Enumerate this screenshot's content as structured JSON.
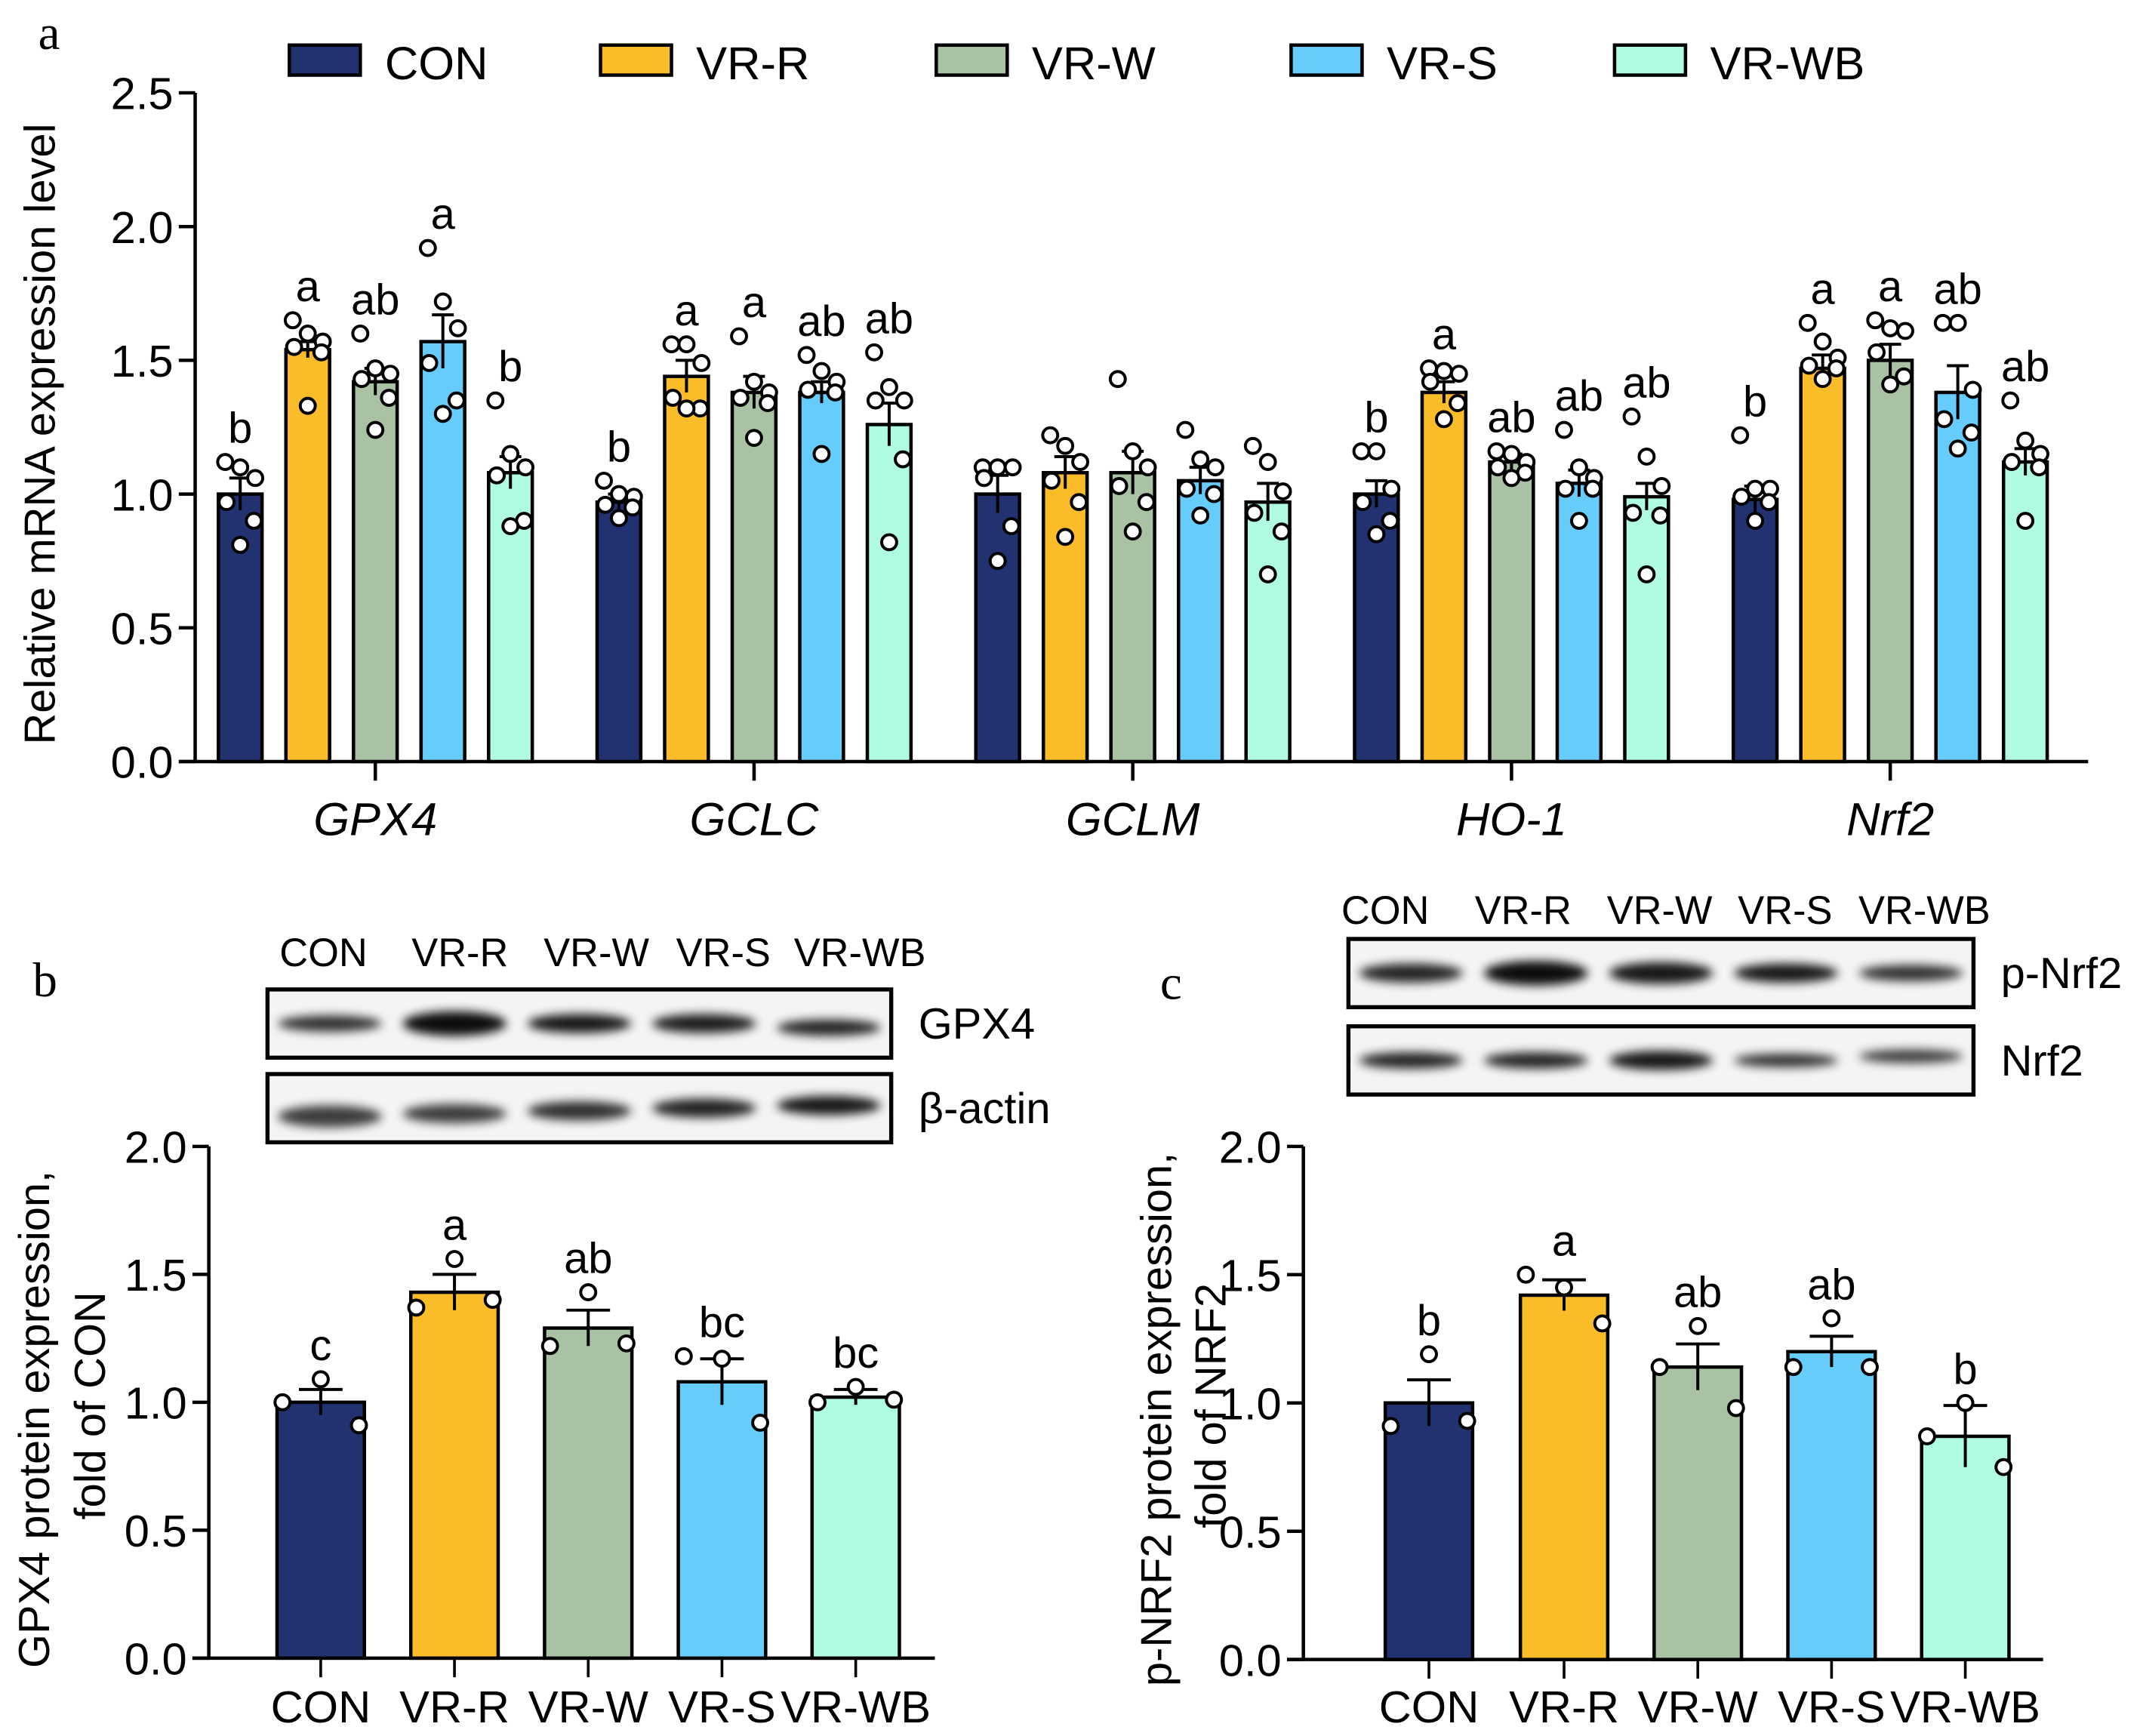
{
  "groups": [
    "CON",
    "VR-R",
    "VR-W",
    "VR-S",
    "VR-WB"
  ],
  "colors": {
    "CON": "#22316f",
    "VR-R": "#fbbc2a",
    "VR-W": "#a8c2a3",
    "VR-S": "#66ccfb",
    "VR-WB": "#b0fbe4"
  },
  "panel_labels": {
    "a": "a",
    "b": "b",
    "c": "c"
  },
  "blots_b": {
    "lanes": [
      "CON",
      "VR-R",
      "VR-W",
      "VR-S",
      "VR-WB"
    ],
    "rows": [
      "GPX4",
      "β-actin"
    ]
  },
  "blots_c": {
    "lanes": [
      "CON",
      "VR-R",
      "VR-W",
      "VR-S",
      "VR-WB"
    ],
    "rows": [
      "p-Nrf2",
      "Nrf2"
    ]
  },
  "chart_data": [
    {
      "type": "bar",
      "panel": "a",
      "title": "",
      "xlabel": "",
      "ylabel": "Relative mRNA expression level",
      "ylim": [
        0,
        2.5
      ],
      "yticks": [
        "0.0",
        "0.5",
        "1.0",
        "1.5",
        "2.0",
        "2.5"
      ],
      "legend": "top",
      "categories": [
        "GPX4",
        "GCLC",
        "GCLM",
        "HO-1",
        "Nrf2"
      ],
      "series": [
        {
          "name": "CON",
          "values": [
            1.0,
            0.97,
            1.0,
            1.0,
            0.98
          ],
          "errors": [
            0.06,
            0.03,
            0.07,
            0.05,
            0.05
          ],
          "letters": [
            "b",
            "b",
            "",
            "b",
            "b"
          ],
          "points": [
            [
              1.12,
              1.1,
              1.06,
              0.97,
              0.9,
              0.81
            ],
            [
              1.05,
              1.0,
              0.99,
              0.96,
              0.95,
              0.91
            ],
            [
              1.1,
              1.1,
              1.1,
              1.06,
              0.88,
              0.75
            ],
            [
              1.16,
              1.16,
              1.02,
              0.97,
              0.9,
              0.85
            ],
            [
              1.22,
              1.02,
              1.02,
              0.99,
              0.97,
              0.9
            ]
          ]
        },
        {
          "name": "VR-R",
          "values": [
            1.54,
            1.44,
            1.08,
            1.38,
            1.47
          ],
          "errors": [
            0.03,
            0.06,
            0.06,
            0.04,
            0.05
          ],
          "letters": [
            "a",
            "a",
            "",
            "a",
            "a"
          ],
          "points": [
            [
              1.65,
              1.6,
              1.57,
              1.55,
              1.53,
              1.33
            ],
            [
              1.56,
              1.56,
              1.49,
              1.36,
              1.32,
              1.32
            ],
            [
              1.22,
              1.18,
              1.12,
              1.05,
              0.97,
              0.84
            ],
            [
              1.47,
              1.46,
              1.45,
              1.42,
              1.34,
              1.28
            ],
            [
              1.64,
              1.57,
              1.51,
              1.48,
              1.47,
              1.43
            ]
          ]
        },
        {
          "name": "VR-W",
          "values": [
            1.42,
            1.38,
            1.08,
            1.12,
            1.5
          ],
          "errors": [
            0.05,
            0.06,
            0.08,
            0.03,
            0.06
          ],
          "letters": [
            "ab",
            "a",
            "",
            "ab",
            "a"
          ],
          "points": [
            [
              1.6,
              1.47,
              1.45,
              1.43,
              1.36,
              1.24
            ],
            [
              1.59,
              1.42,
              1.38,
              1.36,
              1.34,
              1.21
            ],
            [
              1.43,
              1.16,
              1.1,
              1.03,
              0.97,
              0.86
            ],
            [
              1.16,
              1.15,
              1.12,
              1.1,
              1.08,
              1.06
            ],
            [
              1.65,
              1.62,
              1.61,
              1.53,
              1.44,
              1.41
            ]
          ]
        },
        {
          "name": "VR-S",
          "values": [
            1.57,
            1.38,
            1.05,
            1.04,
            1.38
          ],
          "errors": [
            0.1,
            0.04,
            0.05,
            0.05,
            0.1
          ],
          "letters": [
            "a",
            "ab",
            "",
            "ab",
            "ab"
          ],
          "points": [
            [
              1.92,
              1.72,
              1.62,
              1.49,
              1.35,
              1.3
            ],
            [
              1.52,
              1.46,
              1.42,
              1.39,
              1.38,
              1.15
            ],
            [
              1.24,
              1.13,
              1.1,
              1.02,
              1.0,
              0.92
            ],
            [
              1.24,
              1.1,
              1.06,
              1.02,
              1.02,
              0.9
            ],
            [
              1.64,
              1.64,
              1.39,
              1.28,
              1.23,
              1.17
            ]
          ]
        },
        {
          "name": "VR-WB",
          "values": [
            1.08,
            1.26,
            0.97,
            0.99,
            1.12
          ],
          "errors": [
            0.06,
            0.08,
            0.07,
            0.05,
            0.05
          ],
          "letters": [
            "b",
            "ab",
            "",
            "ab",
            "ab"
          ],
          "points": [
            [
              1.35,
              1.15,
              1.1,
              1.07,
              0.9,
              0.88
            ],
            [
              1.53,
              1.4,
              1.35,
              1.35,
              1.13,
              0.82
            ],
            [
              1.18,
              1.12,
              1.01,
              0.93,
              0.86,
              0.7
            ],
            [
              1.29,
              1.14,
              1.03,
              0.93,
              0.92,
              0.7
            ],
            [
              1.35,
              1.2,
              1.15,
              1.12,
              1.1,
              0.9
            ]
          ]
        }
      ]
    },
    {
      "type": "bar",
      "panel": "b",
      "ylabel_line1": "GPX4 protein expression,",
      "ylabel_line2": "fold of CON",
      "ylim": [
        0,
        2.0
      ],
      "yticks": [
        "0.0",
        "0.5",
        "1.0",
        "1.5",
        "2.0"
      ],
      "categories": [
        "CON",
        "VR-R",
        "VR-W",
        "VR-S",
        "VR-WB"
      ],
      "values": [
        1.0,
        1.43,
        1.29,
        1.08,
        1.02
      ],
      "errors": [
        0.05,
        0.07,
        0.07,
        0.09,
        0.03
      ],
      "letters": [
        "c",
        "a",
        "ab",
        "bc",
        "bc"
      ],
      "points": [
        [
          1.09,
          1.0,
          0.91
        ],
        [
          1.56,
          1.37,
          1.4
        ],
        [
          1.43,
          1.22,
          1.23
        ],
        [
          1.17,
          1.18,
          0.92
        ],
        [
          1.06,
          1.0,
          1.01
        ]
      ]
    },
    {
      "type": "bar",
      "panel": "c",
      "ylabel_line1": "p-NRF2 protein expression,",
      "ylabel_line2": "fold of NRF2",
      "ylim": [
        0,
        2.0
      ],
      "yticks": [
        "0.0",
        "0.5",
        "1.0",
        "1.5",
        "2.0"
      ],
      "categories": [
        "CON",
        "VR-R",
        "VR-W",
        "VR-S",
        "VR-WB"
      ],
      "values": [
        1.0,
        1.42,
        1.14,
        1.2,
        0.87
      ],
      "errors": [
        0.09,
        0.06,
        0.09,
        0.06,
        0.12
      ],
      "letters": [
        "b",
        "a",
        "ab",
        "ab",
        "b"
      ],
      "points": [
        [
          1.19,
          0.91,
          0.93
        ],
        [
          1.45,
          1.5,
          1.31
        ],
        [
          1.3,
          1.14,
          0.98
        ],
        [
          1.33,
          1.14,
          1.14
        ],
        [
          1.0,
          0.87,
          0.75
        ]
      ]
    }
  ]
}
